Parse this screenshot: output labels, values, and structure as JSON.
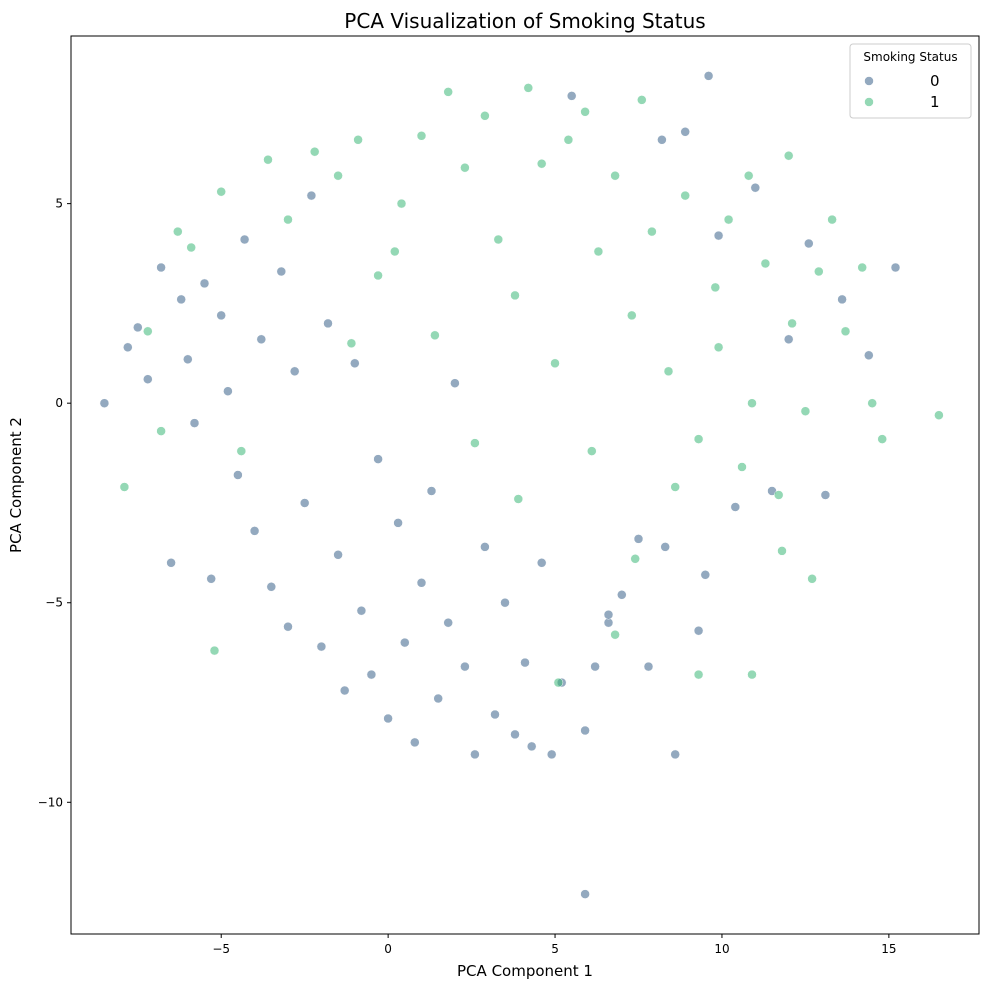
{
  "chart_data": {
    "type": "scatter",
    "title": "PCA Visualization of Smoking Status",
    "xlabel": "PCA Component 1",
    "ylabel": "PCA Component 2",
    "xlim": [
      -9.5,
      17.7
    ],
    "ylim": [
      -13.3,
      9.2
    ],
    "xticks": [
      -5,
      0,
      5,
      10,
      15
    ],
    "yticks": [
      -10,
      -5,
      0,
      5
    ],
    "xtick_labels": [
      "−5",
      "0",
      "5",
      "10",
      "15"
    ],
    "ytick_labels": [
      "−10",
      "−5",
      "0",
      "5"
    ],
    "grid": false,
    "legend": {
      "title": "Smoking Status",
      "placement": "top-right",
      "entries": [
        "0",
        "1"
      ]
    },
    "colors": {
      "0": "#3b628a",
      "1": "#3cb878"
    },
    "series": [
      {
        "name": "0",
        "color": "#3b628a",
        "points": [
          [
            -8.5,
            0.0
          ],
          [
            -7.8,
            1.4
          ],
          [
            -7.5,
            1.9
          ],
          [
            -7.2,
            0.6
          ],
          [
            -6.8,
            3.4
          ],
          [
            -6.5,
            -4.0
          ],
          [
            -6.2,
            2.6
          ],
          [
            -6.0,
            1.1
          ],
          [
            -5.8,
            -0.5
          ],
          [
            -5.5,
            3.0
          ],
          [
            -5.3,
            -4.4
          ],
          [
            -5.0,
            2.2
          ],
          [
            -4.8,
            0.3
          ],
          [
            -4.5,
            -1.8
          ],
          [
            -4.3,
            4.1
          ],
          [
            -4.0,
            -3.2
          ],
          [
            -3.8,
            1.6
          ],
          [
            -3.5,
            -4.6
          ],
          [
            -3.2,
            3.3
          ],
          [
            -3.0,
            -5.6
          ],
          [
            -2.8,
            0.8
          ],
          [
            -2.5,
            -2.5
          ],
          [
            -2.3,
            5.2
          ],
          [
            -2.0,
            -6.1
          ],
          [
            -1.8,
            2.0
          ],
          [
            -1.5,
            -3.8
          ],
          [
            -1.3,
            -7.2
          ],
          [
            -1.0,
            1.0
          ],
          [
            -0.8,
            -5.2
          ],
          [
            -0.5,
            -6.8
          ],
          [
            -0.3,
            -1.4
          ],
          [
            0.0,
            -7.9
          ],
          [
            0.3,
            -3.0
          ],
          [
            0.5,
            -6.0
          ],
          [
            0.8,
            -8.5
          ],
          [
            1.0,
            -4.5
          ],
          [
            1.3,
            -2.2
          ],
          [
            1.5,
            -7.4
          ],
          [
            1.8,
            -5.5
          ],
          [
            2.0,
            0.5
          ],
          [
            2.3,
            -6.6
          ],
          [
            2.6,
            -8.8
          ],
          [
            2.9,
            -3.6
          ],
          [
            3.2,
            -7.8
          ],
          [
            3.5,
            -5.0
          ],
          [
            3.8,
            -8.3
          ],
          [
            4.1,
            -6.5
          ],
          [
            4.3,
            -8.6
          ],
          [
            4.6,
            -4.0
          ],
          [
            4.9,
            -8.8
          ],
          [
            5.2,
            -7.0
          ],
          [
            5.5,
            7.7
          ],
          [
            5.9,
            -8.2
          ],
          [
            6.2,
            -6.6
          ],
          [
            6.6,
            -5.5
          ],
          [
            7.0,
            -4.8
          ],
          [
            7.5,
            -3.4
          ],
          [
            7.8,
            -6.6
          ],
          [
            8.2,
            6.6
          ],
          [
            8.6,
            -8.8
          ],
          [
            8.9,
            6.8
          ],
          [
            9.3,
            -5.7
          ],
          [
            9.6,
            8.2
          ],
          [
            9.9,
            4.2
          ],
          [
            10.4,
            -2.6
          ],
          [
            11.0,
            5.4
          ],
          [
            11.5,
            -2.2
          ],
          [
            12.0,
            1.6
          ],
          [
            12.6,
            4.0
          ],
          [
            13.1,
            -2.3
          ],
          [
            13.6,
            2.6
          ],
          [
            14.4,
            1.2
          ],
          [
            15.2,
            3.4
          ],
          [
            5.9,
            -12.3
          ],
          [
            6.6,
            -5.3
          ],
          [
            8.3,
            -3.6
          ],
          [
            9.5,
            -4.3
          ]
        ]
      },
      {
        "name": "1",
        "color": "#3cb878",
        "points": [
          [
            -7.9,
            -2.1
          ],
          [
            -7.2,
            1.8
          ],
          [
            -6.8,
            -0.7
          ],
          [
            -6.3,
            4.3
          ],
          [
            -5.9,
            3.9
          ],
          [
            -5.2,
            -6.2
          ],
          [
            -5.0,
            5.3
          ],
          [
            -4.4,
            -1.2
          ],
          [
            -3.6,
            6.1
          ],
          [
            -3.0,
            4.6
          ],
          [
            -2.2,
            6.3
          ],
          [
            -1.5,
            5.7
          ],
          [
            -0.9,
            6.6
          ],
          [
            -0.3,
            3.2
          ],
          [
            0.4,
            5.0
          ],
          [
            1.0,
            6.7
          ],
          [
            1.4,
            1.7
          ],
          [
            1.8,
            7.8
          ],
          [
            2.3,
            5.9
          ],
          [
            2.9,
            7.2
          ],
          [
            3.3,
            4.1
          ],
          [
            3.8,
            2.7
          ],
          [
            4.2,
            7.9
          ],
          [
            4.6,
            6.0
          ],
          [
            5.0,
            1.0
          ],
          [
            5.4,
            6.6
          ],
          [
            5.9,
            7.3
          ],
          [
            6.3,
            3.8
          ],
          [
            6.8,
            5.7
          ],
          [
            7.3,
            2.2
          ],
          [
            7.6,
            7.6
          ],
          [
            7.9,
            4.3
          ],
          [
            8.4,
            0.8
          ],
          [
            8.9,
            5.2
          ],
          [
            9.3,
            -0.9
          ],
          [
            9.8,
            2.9
          ],
          [
            10.2,
            4.6
          ],
          [
            10.6,
            -1.6
          ],
          [
            10.9,
            0.0
          ],
          [
            11.3,
            3.5
          ],
          [
            11.7,
            -2.3
          ],
          [
            12.1,
            2.0
          ],
          [
            12.5,
            -0.2
          ],
          [
            12.9,
            3.3
          ],
          [
            13.3,
            4.6
          ],
          [
            13.7,
            1.8
          ],
          [
            14.2,
            3.4
          ],
          [
            14.5,
            0.0
          ],
          [
            14.8,
            -0.9
          ],
          [
            16.5,
            -0.3
          ],
          [
            11.8,
            -3.7
          ],
          [
            12.7,
            -4.4
          ],
          [
            10.9,
            -6.8
          ],
          [
            9.3,
            -6.8
          ],
          [
            6.8,
            -5.8
          ],
          [
            5.1,
            -7.0
          ],
          [
            0.2,
            3.8
          ],
          [
            -1.1,
            1.5
          ],
          [
            2.6,
            -1.0
          ],
          [
            3.9,
            -2.4
          ],
          [
            6.1,
            -1.2
          ],
          [
            7.4,
            -3.9
          ],
          [
            8.6,
            -2.1
          ],
          [
            9.9,
            1.4
          ],
          [
            12.0,
            6.2
          ],
          [
            10.8,
            5.7
          ]
        ]
      }
    ]
  }
}
